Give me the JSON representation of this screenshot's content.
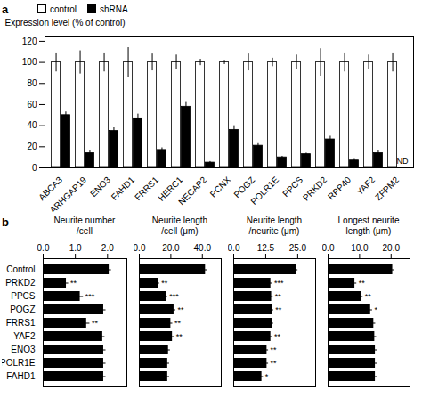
{
  "chart_data": [
    {
      "type": "bar",
      "categories": [
        "ABCA3",
        "ARHGAP19",
        "ENO3",
        "FAHD1",
        "FRRS1",
        "HERC1",
        "NECAP2",
        "PCNX",
        "POGZ",
        "POLR1E",
        "PPCS",
        "PRKD2",
        "RPP40",
        "YAF2",
        "ZFPM2"
      ],
      "series": [
        {
          "name": "control",
          "color": "white",
          "values": [
            100,
            100,
            100,
            100,
            100,
            100,
            100,
            100,
            100,
            100,
            100,
            100,
            100,
            100,
            100
          ],
          "errors": [
            9,
            11,
            9,
            14,
            8,
            7,
            3,
            2,
            8,
            4,
            7,
            13,
            9,
            7,
            9
          ]
        },
        {
          "name": "shRNA",
          "color": "black",
          "values": [
            50,
            14,
            35,
            47,
            17,
            58,
            5,
            36,
            21,
            10,
            13,
            27,
            7,
            14,
            0
          ],
          "errors": [
            3,
            2,
            3,
            4,
            2,
            4,
            1,
            4,
            2,
            1,
            1,
            3,
            1,
            2,
            0
          ]
        }
      ],
      "ylabel": "Expression level (% of control)",
      "ylim": [
        0,
        125
      ],
      "yticks": [
        0,
        20,
        40,
        60,
        80,
        100,
        120
      ],
      "legend": "upper left",
      "grid": false,
      "annotations": [
        {
          "text": "a"
        },
        {
          "text": "ND",
          "category": "ZFPM2",
          "series": "shRNA"
        }
      ]
    },
    {
      "type": "bar",
      "orientation": "horizontal",
      "title": "Neurite number\n/cell",
      "categories": [
        "Control",
        "PRKD2",
        "PPCS",
        "POGZ",
        "FRRS1",
        "YAF2",
        "ENO3",
        "POLR1E",
        "FAHD1"
      ],
      "values": [
        2.05,
        0.72,
        1.15,
        1.88,
        1.35,
        1.85,
        1.88,
        1.88,
        1.88
      ],
      "errors": [
        0.07,
        0.07,
        0.1,
        0.07,
        0.1,
        0.07,
        0.07,
        0.07,
        0.07
      ],
      "significance": [
        null,
        "**",
        "***",
        null,
        "**",
        null,
        null,
        null,
        null
      ],
      "color": "black",
      "xlim": [
        0,
        2.6
      ],
      "xticks": [
        {
          "value": 0.0,
          "label": "0.0"
        },
        {
          "value": 1.0,
          "label": "1.0"
        },
        {
          "value": 2.0,
          "label": "2.0"
        }
      ],
      "grid": false,
      "annotations": [
        {
          "text": "b"
        }
      ]
    },
    {
      "type": "bar",
      "orientation": "horizontal",
      "title": "Neurite length\n/cell (μm)",
      "categories": [
        "Control",
        "PRKD2",
        "PPCS",
        "POGZ",
        "FRRS1",
        "YAF2",
        "ENO3",
        "POLR1E",
        "FAHD1"
      ],
      "values": [
        42.0,
        12.0,
        17.0,
        22.0,
        20.0,
        21.0,
        18.5,
        18.0,
        18.0
      ],
      "errors": [
        1.2,
        0.9,
        1.0,
        1.2,
        1.2,
        1.2,
        1.2,
        1.2,
        1.2
      ],
      "significance": [
        null,
        "**",
        "***",
        "**",
        "**",
        "**",
        null,
        null,
        null
      ],
      "color": "black",
      "xlim": [
        0,
        52
      ],
      "xticks": [
        {
          "value": 0.0,
          "label": "0.0"
        },
        {
          "value": 20.0,
          "label": "20.0"
        },
        {
          "value": 40.0,
          "label": "40.0"
        }
      ],
      "grid": false,
      "tick_labels": "x"
    },
    {
      "type": "bar",
      "orientation": "horizontal",
      "title": "Neurite length\n/neurite (μm)",
      "categories": [
        "Control",
        "PRKD2",
        "PPCS",
        "POGZ",
        "FRRS1",
        "YAF2",
        "ENO3",
        "POLR1E",
        "FAHD1"
      ],
      "values": [
        24.5,
        14.5,
        14.8,
        15.0,
        15.0,
        14.5,
        13.0,
        13.0,
        11.0
      ],
      "errors": [
        0.6,
        0.6,
        0.6,
        0.6,
        0.6,
        0.6,
        0.6,
        0.6,
        0.6
      ],
      "significance": [
        null,
        "***",
        "**",
        "**",
        null,
        "**",
        "**",
        "**",
        "*"
      ],
      "color": "black",
      "xlim": [
        0,
        32
      ],
      "xticks": [
        {
          "value": 0.0,
          "label": "0.0"
        },
        {
          "value": 12.5,
          "label": "12.5"
        },
        {
          "value": 25.0,
          "label": "25.0"
        }
      ],
      "grid": false,
      "tick_labels": "x"
    },
    {
      "type": "bar",
      "orientation": "horizontal",
      "title": "Longest neurite\nlength (μm)",
      "categories": [
        "Control",
        "PRKD2",
        "PPCS",
        "POGZ",
        "FRRS1",
        "YAF2",
        "ENO3",
        "POLR1E",
        "FAHD1"
      ],
      "values": [
        20.5,
        8.5,
        10.5,
        13.5,
        14.5,
        14.8,
        15.0,
        15.0,
        15.0
      ],
      "errors": [
        0.6,
        0.6,
        0.6,
        0.6,
        0.6,
        0.6,
        0.6,
        0.6,
        0.6
      ],
      "significance": [
        null,
        "**",
        "**",
        "*",
        null,
        null,
        null,
        null,
        null
      ],
      "color": "black",
      "xlim": [
        0,
        26
      ],
      "xticks": [
        {
          "value": 0.0,
          "label": "0.0"
        },
        {
          "value": 10.0,
          "label": "10.0"
        },
        {
          "value": 20.0,
          "label": "20.0"
        }
      ],
      "grid": false,
      "tick_labels": "x"
    }
  ]
}
